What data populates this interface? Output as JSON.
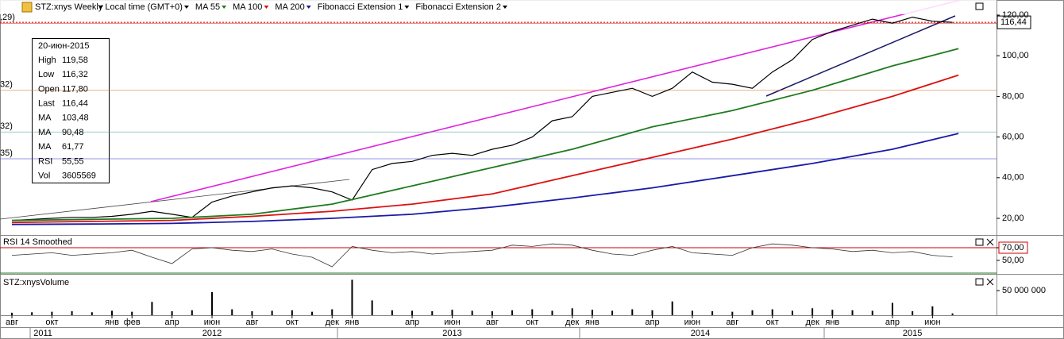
{
  "chart_data": [
    {
      "type": "line",
      "tools": [
        "Fibonacci Extension 1",
        "Fibonacci Extension 2"
      ],
      "x": [
        0,
        1,
        2,
        3,
        4,
        5,
        6,
        7,
        8,
        9,
        10,
        11,
        12,
        13,
        14,
        15,
        16,
        17,
        18,
        19,
        20,
        21,
        22,
        23,
        24,
        25,
        26,
        27,
        28,
        29,
        30,
        31,
        32,
        33,
        34,
        35,
        36,
        37,
        38,
        39,
        40,
        41,
        42,
        43,
        44,
        45,
        46,
        47
      ],
      "series": [
        {
          "name": "STZ:xnys Weekly Local time (GMT+0)",
          "color": "#000000",
          "values": [
            19,
            19.5,
            20,
            20.5,
            20.5,
            21,
            22,
            23.5,
            22,
            20.5,
            28,
            31,
            33,
            35,
            36,
            35,
            33,
            29,
            44,
            47,
            48,
            51,
            52,
            51,
            54,
            56,
            60,
            68,
            70,
            80,
            82,
            84,
            80,
            84,
            92,
            87,
            86,
            84,
            92,
            98,
            108,
            112,
            115,
            118,
            116,
            119,
            117,
            116.44
          ]
        },
        {
          "name": "MA 55",
          "color": "#1f7a1f",
          "x": [
            0,
            4,
            8,
            12,
            16,
            20,
            24,
            28,
            32,
            36,
            40,
            44,
            47.3
          ],
          "values": [
            19,
            19.5,
            20,
            22,
            27,
            36,
            45,
            54,
            65,
            73,
            83,
            95,
            103.48
          ]
        },
        {
          "name": "MA 100",
          "color": "#dd1111",
          "x": [
            0,
            4,
            8,
            12,
            16,
            20,
            24,
            28,
            32,
            36,
            40,
            44,
            47.3
          ],
          "values": [
            18,
            18.5,
            19,
            21,
            23.5,
            27,
            32,
            41,
            50,
            59,
            69,
            80,
            90.48
          ]
        },
        {
          "name": "MA 200",
          "color": "#1a1aa6",
          "x": [
            0,
            4,
            8,
            12,
            16,
            20,
            24,
            28,
            32,
            36,
            40,
            44,
            47.3
          ],
          "values": [
            17,
            17.2,
            17.5,
            18.5,
            20,
            22,
            25.5,
            30,
            35,
            41,
            47,
            54,
            61.77
          ]
        }
      ],
      "ylim": [
        12.2,
        124.3
      ],
      "yticks": [
        {
          "value": 20,
          "label": "20,00"
        },
        {
          "value": 40,
          "label": "40,00"
        },
        {
          "value": 60,
          "label": "60,00"
        },
        {
          "value": 80,
          "label": "80,00"
        },
        {
          "value": 100,
          "label": "100,00"
        },
        {
          "value": 120,
          "label": "120,00"
        }
      ],
      "last": {
        "value": 116.44,
        "label": "116,44"
      },
      "levels": [
        {
          "value": 116,
          "label": ",29)",
          "color": "#cc0000"
        },
        {
          "value": 83,
          "label": "32)",
          "color": "#d2691e"
        },
        {
          "value": 62.5,
          "label": "32)",
          "color": "#4a9a9a"
        },
        {
          "value": 49.3,
          "label": "35)",
          "color": "#3333cc"
        }
      ],
      "info": {
        "date": "20-июн-2015",
        "rows": [
          [
            "High",
            "119,58"
          ],
          [
            "Low",
            "116,32"
          ],
          [
            "Open",
            "117,80"
          ],
          [
            "Last",
            "116,44"
          ],
          [
            "MA",
            "103,48"
          ],
          [
            "MA",
            "90,48"
          ],
          [
            "MA",
            "61,77"
          ],
          [
            "RSI",
            "55,55"
          ],
          [
            "Vol",
            "3605569"
          ]
        ]
      }
    },
    {
      "type": "line",
      "title": "RSI 14 Smoothed",
      "color": "#333333",
      "values": [
        58,
        60,
        62,
        58,
        60,
        62,
        66,
        55,
        45,
        68,
        70,
        66,
        64,
        68,
        60,
        55,
        40,
        72,
        66,
        62,
        64,
        60,
        62,
        64,
        66,
        74,
        72,
        76,
        74,
        66,
        60,
        58,
        66,
        72,
        62,
        60,
        58,
        70,
        76,
        74,
        70,
        68,
        64,
        66,
        62,
        64,
        58,
        55.55
      ],
      "ylim": [
        30,
        87.5
      ],
      "yticks": [
        {
          "value": 70,
          "label": "70,00"
        },
        {
          "value": 50,
          "label": "50,00"
        }
      ],
      "bands": [
        70,
        30
      ]
    },
    {
      "type": "bar",
      "title": "STZ:xnysVolume",
      "color": "#000000",
      "values": [
        5000000,
        6000000,
        7000000,
        8000000,
        6000000,
        9000000,
        7000000,
        27000000,
        8000000,
        10000000,
        47000000,
        12000000,
        8000000,
        9000000,
        10000000,
        7000000,
        12000000,
        72000000,
        30000000,
        10000000,
        9000000,
        8000000,
        11000000,
        9000000,
        8000000,
        10000000,
        12000000,
        9000000,
        14000000,
        11000000,
        9000000,
        12000000,
        10000000,
        28000000,
        9000000,
        8000000,
        7000000,
        10000000,
        12000000,
        9000000,
        14000000,
        11000000,
        10000000,
        9000000,
        25000000,
        8000000,
        18000000,
        3605569
      ],
      "ylim": [
        0,
        82300000
      ],
      "yticks": [
        {
          "value": 50000000,
          "label": "50 000 000"
        }
      ],
      "xlim": [
        -0.595,
        49.2
      ],
      "xticks": [
        {
          "value": 0,
          "label": "авг"
        },
        {
          "value": 2,
          "label": "окт"
        },
        {
          "value": 5,
          "label": "янв"
        },
        {
          "value": 6,
          "label": "фев"
        },
        {
          "value": 8,
          "label": "апр"
        },
        {
          "value": 10,
          "label": "июн"
        },
        {
          "value": 12,
          "label": "авг"
        },
        {
          "value": 14,
          "label": "окт"
        },
        {
          "value": 16,
          "label": "дек"
        },
        {
          "value": 17,
          "label": "янв"
        },
        {
          "value": 20,
          "label": "апр"
        },
        {
          "value": 22,
          "label": "июн"
        },
        {
          "value": 24,
          "label": "авг"
        },
        {
          "value": 26,
          "label": "окт"
        },
        {
          "value": 28,
          "label": "дек"
        },
        {
          "value": 29,
          "label": "янв"
        },
        {
          "value": 32,
          "label": "апр"
        },
        {
          "value": 34,
          "label": "июн"
        },
        {
          "value": 36,
          "label": "авг"
        },
        {
          "value": 38,
          "label": "окт"
        },
        {
          "value": 40,
          "label": "дек"
        },
        {
          "value": 41,
          "label": "янв"
        },
        {
          "value": 44,
          "label": "апр"
        },
        {
          "value": 46,
          "label": "июн"
        }
      ],
      "years": [
        {
          "value": 1.55,
          "label": "2011"
        },
        {
          "value": 10,
          "label": "2012"
        },
        {
          "value": 22,
          "label": "2013"
        },
        {
          "value": 34.4,
          "label": "2014"
        },
        {
          "value": 45,
          "label": "2015"
        }
      ]
    }
  ]
}
